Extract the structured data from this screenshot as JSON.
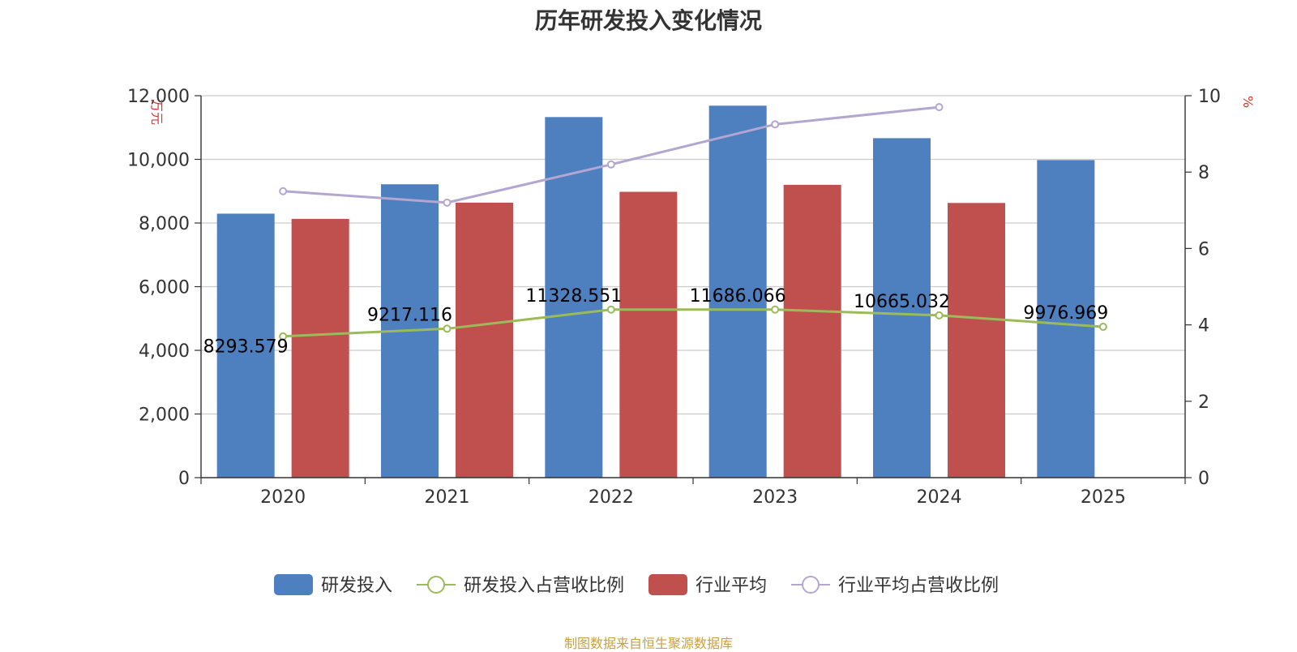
{
  "chart_data": {
    "type": "bar",
    "title": "历年研发投入变化情况",
    "categories": [
      "2020",
      "2021",
      "2022",
      "2023",
      "2024",
      "2025"
    ],
    "y_left": {
      "unit": "万元",
      "range": [
        0,
        12000
      ],
      "ticks": [
        "0",
        "2,000",
        "4,000",
        "6,000",
        "8,000",
        "10,000",
        "12,000"
      ]
    },
    "y_right": {
      "unit": "%",
      "range": [
        0,
        10
      ],
      "ticks": [
        "0",
        "2",
        "4",
        "6",
        "8",
        "10"
      ]
    },
    "grid": true,
    "legend_position": "bottom",
    "series": [
      {
        "name": "研发投入",
        "type": "bar",
        "axis": "left",
        "color": "#4e7fbf",
        "values": [
          8293.579,
          9217.116,
          11328.551,
          11686.066,
          10665.032,
          9976.969
        ],
        "labels": [
          "8293.579",
          "9217.116",
          "11328.551",
          "11686.066",
          "10665.032",
          "9976.969"
        ]
      },
      {
        "name": "研发投入占营收比例",
        "type": "line",
        "axis": "right",
        "color": "#9bbb59",
        "values": [
          3.7,
          3.9,
          4.4,
          4.4,
          4.25,
          3.95
        ]
      },
      {
        "name": "行业平均",
        "type": "bar",
        "axis": "left",
        "color": "#c0504d",
        "values": [
          8130,
          8640,
          8980,
          9200,
          8630,
          null
        ]
      },
      {
        "name": "行业平均占营收比例",
        "type": "line",
        "axis": "right",
        "color": "#b3a6d0",
        "values": [
          7.5,
          7.2,
          8.2,
          9.25,
          9.7,
          null
        ]
      }
    ]
  },
  "source": "制图数据来自恒生聚源数据库"
}
